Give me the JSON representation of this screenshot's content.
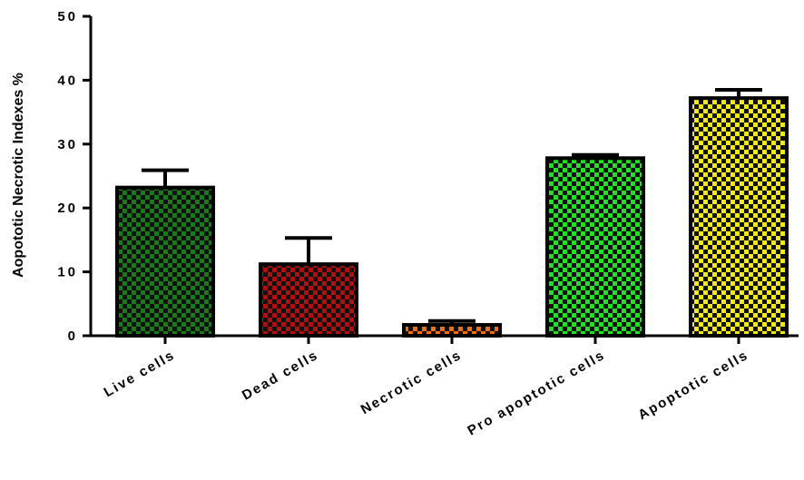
{
  "chart_data": {
    "type": "bar",
    "title": "",
    "xlabel": "",
    "ylabel": "Aopototic Necrotic Indexes %",
    "ylim": [
      0,
      50
    ],
    "yticks": [
      0,
      10,
      20,
      30,
      40,
      50
    ],
    "grid": false,
    "legend": "none",
    "categories": [
      "Live cells",
      "Dead cells",
      "Necrotic cells",
      "Pro apoptotic cells",
      "Apoptotic cells"
    ],
    "values": [
      23.2,
      11.2,
      1.7,
      27.8,
      37.2
    ],
    "error_upper": [
      2.7,
      4.1,
      0.6,
      0.5,
      1.3
    ],
    "colors": [
      "#1a7a1a",
      "#b01010",
      "#f07010",
      "#22e022",
      "#f2ea18"
    ],
    "pattern": "checkerboard"
  }
}
